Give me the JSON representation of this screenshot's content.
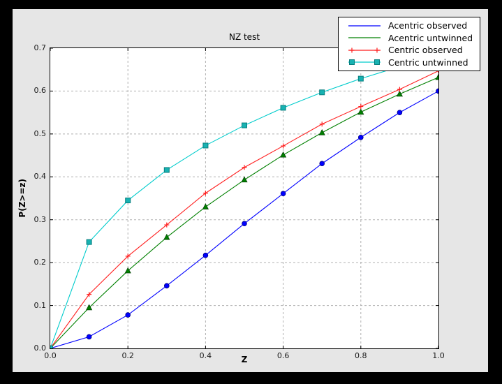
{
  "window": {
    "background": "#000000"
  },
  "figure": {
    "background": "#e6e6e6",
    "axes_background": "#ffffff",
    "grid_color": "#b0b0b0",
    "axis_color": "#000000"
  },
  "chart_data": {
    "type": "line",
    "title": "NZ test",
    "xlabel": "Z",
    "ylabel": "P(Z>=z)",
    "xlim": [
      0.0,
      1.0
    ],
    "ylim": [
      0.0,
      0.7
    ],
    "grid": true,
    "x_tick_labels": [
      "0.0",
      "0.2",
      "0.4",
      "0.6",
      "0.8",
      "1.0"
    ],
    "x_tick_values": [
      0.0,
      0.2,
      0.4,
      0.6,
      0.8,
      1.0
    ],
    "y_tick_labels": [
      "0.0",
      "0.1",
      "0.2",
      "0.3",
      "0.4",
      "0.5",
      "0.6",
      "0.7"
    ],
    "y_tick_values": [
      0.0,
      0.1,
      0.2,
      0.3,
      0.4,
      0.5,
      0.6,
      0.7
    ],
    "legend_position": "upper right",
    "x": [
      0.0,
      0.1,
      0.2,
      0.3,
      0.4,
      0.5,
      0.6,
      0.7,
      0.8,
      0.9,
      1.0
    ],
    "series": [
      {
        "name": "Acentric observed",
        "color": "#0000ff",
        "marker": "circle",
        "marker_fill": "#0000ff",
        "marker_edge": "#000080",
        "legend_marker": "none",
        "values": [
          0.0,
          0.027,
          0.078,
          0.146,
          0.217,
          0.291,
          0.361,
          0.431,
          0.492,
          0.55,
          0.6
        ]
      },
      {
        "name": "Acentric untwinned",
        "color": "#008000",
        "marker": "triangle",
        "marker_fill": "#008000",
        "marker_edge": "#003c00",
        "legend_marker": "none",
        "values": [
          0.0,
          0.095,
          0.181,
          0.259,
          0.33,
          0.393,
          0.451,
          0.503,
          0.551,
          0.593,
          0.632
        ]
      },
      {
        "name": "Centric observed",
        "color": "#ff1f1f",
        "marker": "plus",
        "marker_fill": "#ff1f1f",
        "marker_edge": "#ff1f1f",
        "legend_marker": "plus",
        "values": [
          0.0,
          0.126,
          0.215,
          0.288,
          0.362,
          0.422,
          0.472,
          0.523,
          0.564,
          0.604,
          0.647
        ]
      },
      {
        "name": "Centric untwinned",
        "color": "#00cccc",
        "marker": "square",
        "marker_fill": "#18b2b2",
        "marker_edge": "#067d7d",
        "legend_marker": "square",
        "values": [
          0.0,
          0.248,
          0.345,
          0.416,
          0.473,
          0.52,
          0.561,
          0.597,
          0.629,
          0.657,
          0.683
        ]
      }
    ]
  }
}
